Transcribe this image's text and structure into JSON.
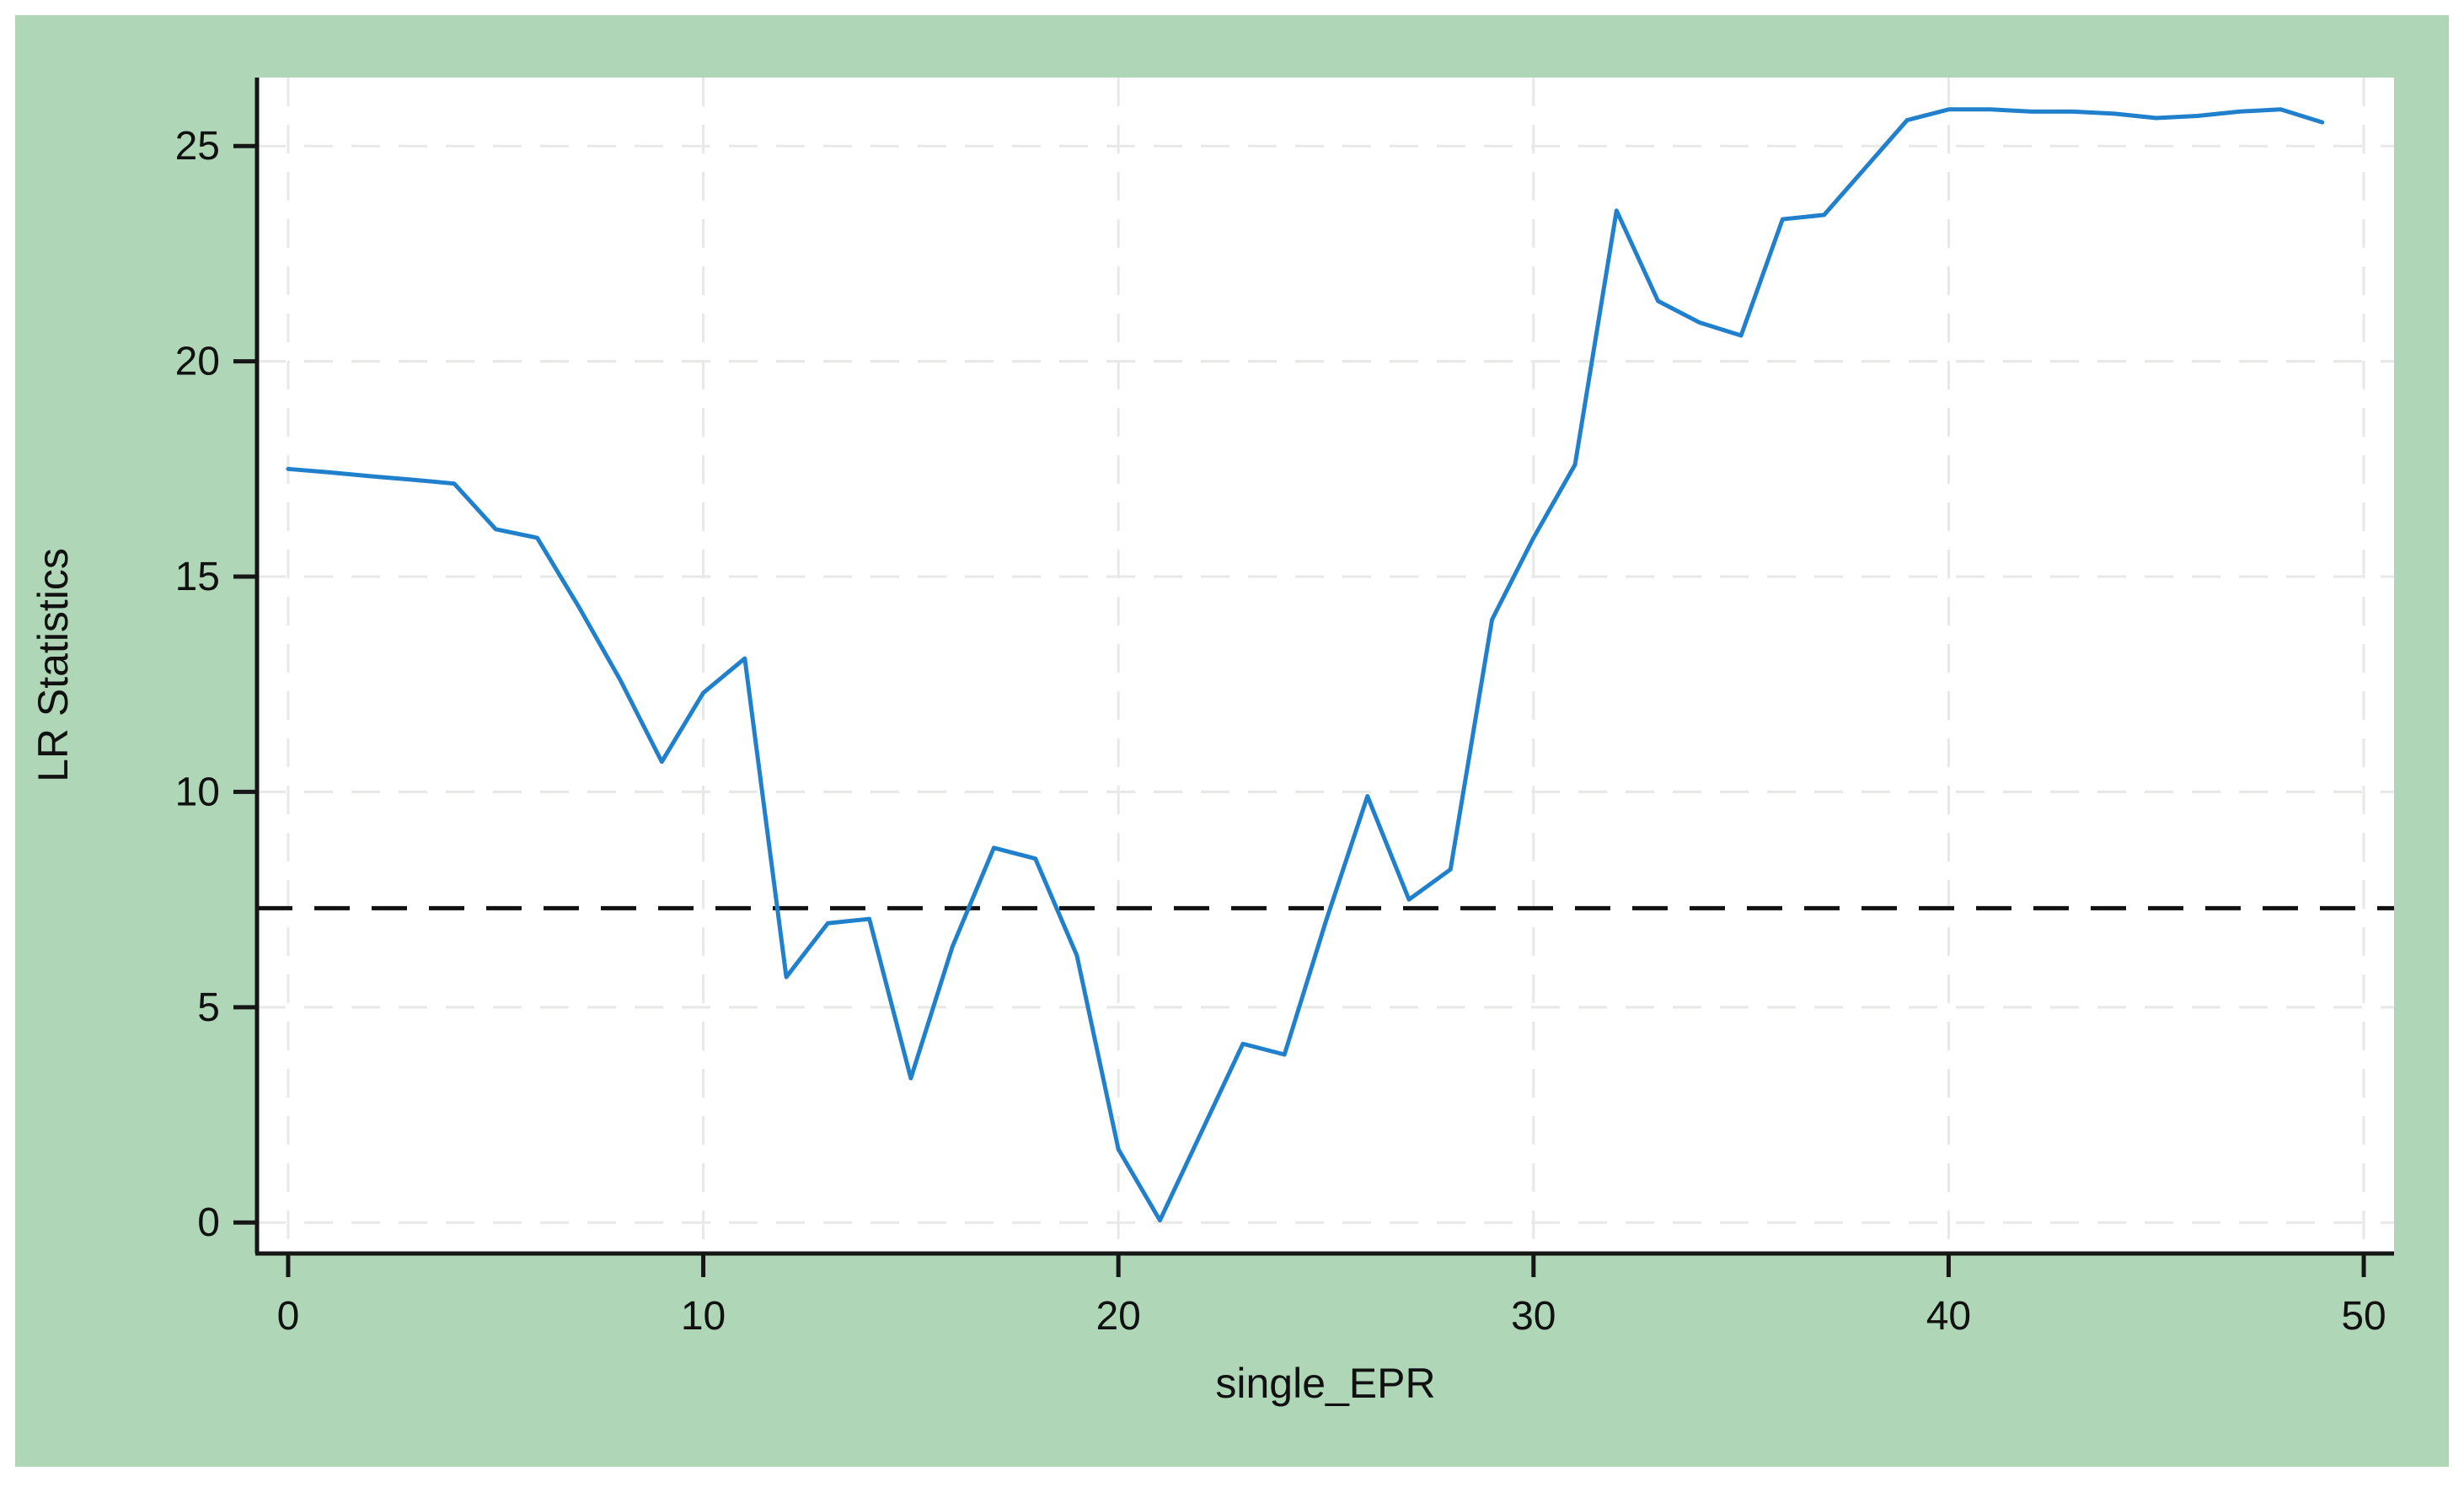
{
  "figure": {
    "background_color": "#ffffff",
    "panel_color": "#afd6b6",
    "plot_background_color": "#ffffff",
    "spine_color": "#161616",
    "grid_color": "#e7e9e7",
    "tick_label_color": "#111111"
  },
  "chart_data": {
    "type": "line",
    "title": "",
    "xlabel": "single_EPR",
    "ylabel": "LR Statistics",
    "x_ticks": [
      0,
      10,
      20,
      30,
      40,
      50
    ],
    "y_ticks": [
      0,
      5,
      10,
      15,
      20,
      25
    ],
    "xlim": [
      -0.75,
      50.73
    ],
    "ylim": [
      -0.72,
      26.59
    ],
    "grid": true,
    "legend": "none",
    "series": [
      {
        "name": "LR statistic",
        "color": "#2080cc",
        "x": [
          0,
          1,
          2,
          3,
          4,
          5,
          6,
          7,
          8,
          9,
          10,
          11,
          12,
          13,
          14,
          15,
          16,
          17,
          18,
          19,
          20,
          21,
          22,
          23,
          24,
          25,
          26,
          27,
          28,
          29,
          30,
          31,
          32,
          33,
          34,
          35,
          36,
          37,
          38,
          39,
          40,
          41,
          42,
          43,
          44,
          45,
          46,
          47,
          48,
          49
        ],
        "values": [
          17.5,
          17.42,
          17.33,
          17.25,
          17.16,
          16.1,
          15.9,
          14.3,
          12.6,
          10.7,
          12.3,
          13.1,
          5.7,
          6.95,
          7.05,
          3.35,
          6.4,
          8.7,
          8.45,
          6.2,
          1.7,
          0.05,
          2.1,
          4.15,
          3.9,
          7.0,
          9.9,
          7.5,
          8.2,
          14.0,
          15.9,
          17.6,
          23.5,
          21.4,
          20.9,
          20.6,
          23.3,
          23.4,
          24.5,
          25.6,
          25.85,
          25.85,
          25.8,
          25.8,
          25.75,
          25.65,
          25.7,
          25.8,
          25.85,
          25.55
        ]
      }
    ],
    "reference_line": {
      "value": 7.3,
      "style": "dashed",
      "color": "#111111"
    }
  }
}
